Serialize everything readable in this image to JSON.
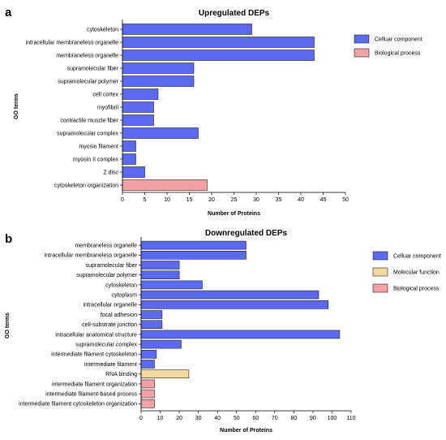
{
  "chart_data": [
    {
      "type": "bar",
      "orientation": "horizontal",
      "panel": "a",
      "title": "Upregulated DEPs",
      "xlabel": "Number of Proteins",
      "ylabel": "GO terms",
      "xlim": [
        0,
        50
      ],
      "xticks": [
        "0",
        "5",
        "10",
        "15",
        "20",
        "25",
        "30",
        "35",
        "40",
        "45",
        "50"
      ],
      "grid": false,
      "legend_position": "right",
      "categories": [
        "cytoskeleton",
        "intracellular membraneless organelle",
        "membraneless organelle",
        "supramolecular fiber",
        "supramolecular polymer",
        "cell cortex",
        "myofibril",
        "contractile muscle fiber",
        "supramolecular complex",
        "myosin filament",
        "myosin II complex",
        "Z disc",
        "cytoskeleton organization"
      ],
      "values": [
        29,
        43,
        43,
        16,
        16,
        8,
        7,
        7,
        17,
        3,
        3,
        5,
        19
      ],
      "groups": [
        "cc",
        "cc",
        "cc",
        "cc",
        "cc",
        "cc",
        "cc",
        "cc",
        "cc",
        "cc",
        "cc",
        "cc",
        "bp"
      ],
      "legend": [
        {
          "key": "cc",
          "label": "Celluar component",
          "color": "#5b6af0"
        },
        {
          "key": "bp",
          "label": "Biological process",
          "color": "#f4a0a4"
        }
      ]
    },
    {
      "type": "bar",
      "orientation": "horizontal",
      "panel": "b",
      "title": "Downregulated DEPs",
      "xlabel": "Number of Proteins",
      "ylabel": "GO terms",
      "xlim": [
        0,
        110
      ],
      "xticks": [
        "0",
        "10",
        "20",
        "30",
        "40",
        "50",
        "60",
        "70",
        "80",
        "90",
        "100",
        "110"
      ],
      "grid": false,
      "legend_position": "right",
      "categories": [
        "membraneless organelle",
        "intracellular membraneless organelle",
        "supramolecular fiber",
        "supramolecular polymer",
        "cytoskeleton",
        "cytoplasm",
        "intracellular organelle",
        "focal adhesion",
        "cell-substrate junction",
        "intracellular anatomical structure",
        "supramolecular complex",
        "intermediate filament cytoskeleton",
        "intermediate filament",
        "RNA binding",
        "intermediate filament organization",
        "intermediate filament-based process",
        "intermediate filament cytoskeleton organization"
      ],
      "values": [
        55,
        55,
        20,
        20,
        32,
        93,
        98,
        11,
        11,
        104,
        21,
        8,
        7,
        25,
        7,
        7,
        7
      ],
      "groups": [
        "cc",
        "cc",
        "cc",
        "cc",
        "cc",
        "cc",
        "cc",
        "cc",
        "cc",
        "cc",
        "cc",
        "cc",
        "cc",
        "mf",
        "bp",
        "bp",
        "bp"
      ],
      "legend": [
        {
          "key": "cc",
          "label": "Celluar component",
          "color": "#5b6af0"
        },
        {
          "key": "mf",
          "label": "Molecular function",
          "color": "#f1d9a0"
        },
        {
          "key": "bp",
          "label": "Biological process",
          "color": "#f4a0a4"
        }
      ]
    }
  ]
}
